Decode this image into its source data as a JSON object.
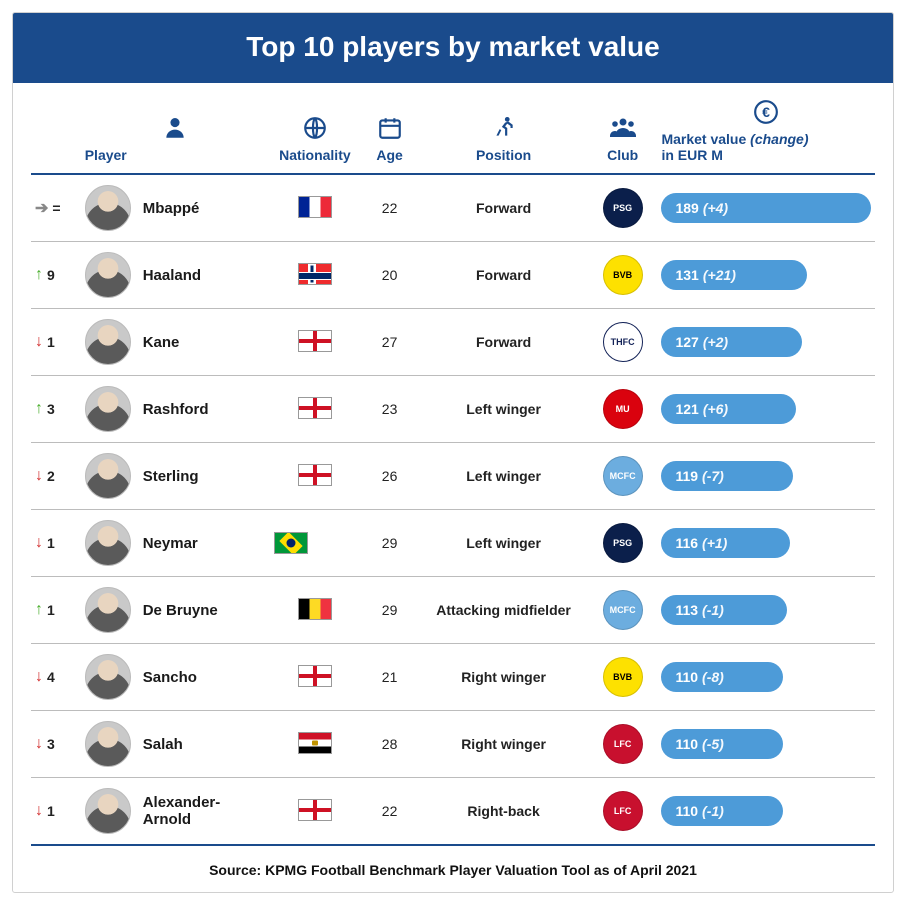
{
  "title": "Top 10 players by market value",
  "columns": {
    "player": "Player",
    "nationality": "Nationality",
    "age": "Age",
    "position": "Position",
    "club": "Club",
    "value_line1": "Market value (change)",
    "value_line2": "in EUR M"
  },
  "max_value": 189,
  "bar_color": "#4d9bd8",
  "header_bg": "#1a4b8c",
  "rows": [
    {
      "trend": "same",
      "trend_symbol": "➔",
      "rank_change": "=",
      "name": "Mbappé",
      "flag": "france",
      "age": "22",
      "position": "Forward",
      "club_bg": "#0b1f4b",
      "club_text": "PSG",
      "value": 189,
      "change": "(+4)"
    },
    {
      "trend": "up",
      "trend_symbol": "↑",
      "rank_change": "9",
      "name": "Haaland",
      "flag": "norway",
      "age": "20",
      "position": "Forward",
      "club_bg": "#fde100",
      "club_fg": "#000",
      "club_text": "BVB",
      "value": 131,
      "change": "(+21)"
    },
    {
      "trend": "down",
      "trend_symbol": "↓",
      "rank_change": "1",
      "name": "Kane",
      "flag": "england",
      "age": "27",
      "position": "Forward",
      "club_bg": "#ffffff",
      "club_fg": "#132257",
      "club_text": "THFC",
      "club_border": "#132257",
      "value": 127,
      "change": "(+2)"
    },
    {
      "trend": "up",
      "trend_symbol": "↑",
      "rank_change": "3",
      "name": "Rashford",
      "flag": "england",
      "age": "23",
      "position": "Left winger",
      "club_bg": "#da020e",
      "club_text": "MU",
      "value": 121,
      "change": "(+6)"
    },
    {
      "trend": "down",
      "trend_symbol": "↓",
      "rank_change": "2",
      "name": "Sterling",
      "flag": "england",
      "age": "26",
      "position": "Left winger",
      "club_bg": "#6caddf",
      "club_text": "MCFC",
      "value": 119,
      "change": "(-7)"
    },
    {
      "trend": "down",
      "trend_symbol": "↓",
      "rank_change": "1",
      "name": "Neymar",
      "flag": "brazil",
      "age": "29",
      "position": "Left winger",
      "club_bg": "#0b1f4b",
      "club_text": "PSG",
      "value": 116,
      "change": "(+1)"
    },
    {
      "trend": "up",
      "trend_symbol": "↑",
      "rank_change": "1",
      "name": "De Bruyne",
      "flag": "belgium",
      "age": "29",
      "position": "Attacking midfielder",
      "club_bg": "#6caddf",
      "club_text": "MCFC",
      "value": 113,
      "change": "(-1)"
    },
    {
      "trend": "down",
      "trend_symbol": "↓",
      "rank_change": "4",
      "name": "Sancho",
      "flag": "england",
      "age": "21",
      "position": "Right winger",
      "club_bg": "#fde100",
      "club_fg": "#000",
      "club_text": "BVB",
      "value": 110,
      "change": "(-8)"
    },
    {
      "trend": "down",
      "trend_symbol": "↓",
      "rank_change": "3",
      "name": "Salah",
      "flag": "egypt",
      "age": "28",
      "position": "Right winger",
      "club_bg": "#c8102e",
      "club_text": "LFC",
      "value": 110,
      "change": "(-5)"
    },
    {
      "trend": "down",
      "trend_symbol": "↓",
      "rank_change": "1",
      "name": "Alexander-Arnold",
      "flag": "england",
      "age": "22",
      "position": "Right-back",
      "club_bg": "#c8102e",
      "club_text": "LFC",
      "value": 110,
      "change": "(-1)"
    }
  ],
  "source": "Source: KPMG Football Benchmark Player Valuation Tool as of April 2021"
}
